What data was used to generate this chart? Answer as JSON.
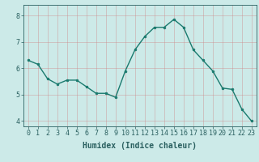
{
  "x": [
    0,
    1,
    2,
    3,
    4,
    5,
    6,
    7,
    8,
    9,
    10,
    11,
    12,
    13,
    14,
    15,
    16,
    17,
    18,
    19,
    20,
    21,
    22,
    23
  ],
  "y": [
    6.3,
    6.15,
    5.6,
    5.4,
    5.55,
    5.55,
    5.3,
    5.05,
    5.05,
    4.9,
    5.9,
    6.7,
    7.2,
    7.55,
    7.55,
    7.85,
    7.55,
    6.7,
    6.3,
    5.9,
    5.25,
    5.2,
    4.45,
    4.0
  ],
  "line_color": "#1a7a6e",
  "bg_color": "#cceae8",
  "grid_color": "#cc8888",
  "xlabel": "Humidex (Indice chaleur)",
  "ylim": [
    3.8,
    8.4
  ],
  "xlim": [
    -0.5,
    23.5
  ],
  "yticks": [
    4,
    5,
    6,
    7,
    8
  ],
  "xticks": [
    0,
    1,
    2,
    3,
    4,
    5,
    6,
    7,
    8,
    9,
    10,
    11,
    12,
    13,
    14,
    15,
    16,
    17,
    18,
    19,
    20,
    21,
    22,
    23
  ],
  "tick_color": "#2a6060",
  "label_color": "#2a6060",
  "marker": "o",
  "markersize": 2.0,
  "linewidth": 1.0,
  "xlabel_fontsize": 7.0,
  "tick_fontsize": 6.0
}
